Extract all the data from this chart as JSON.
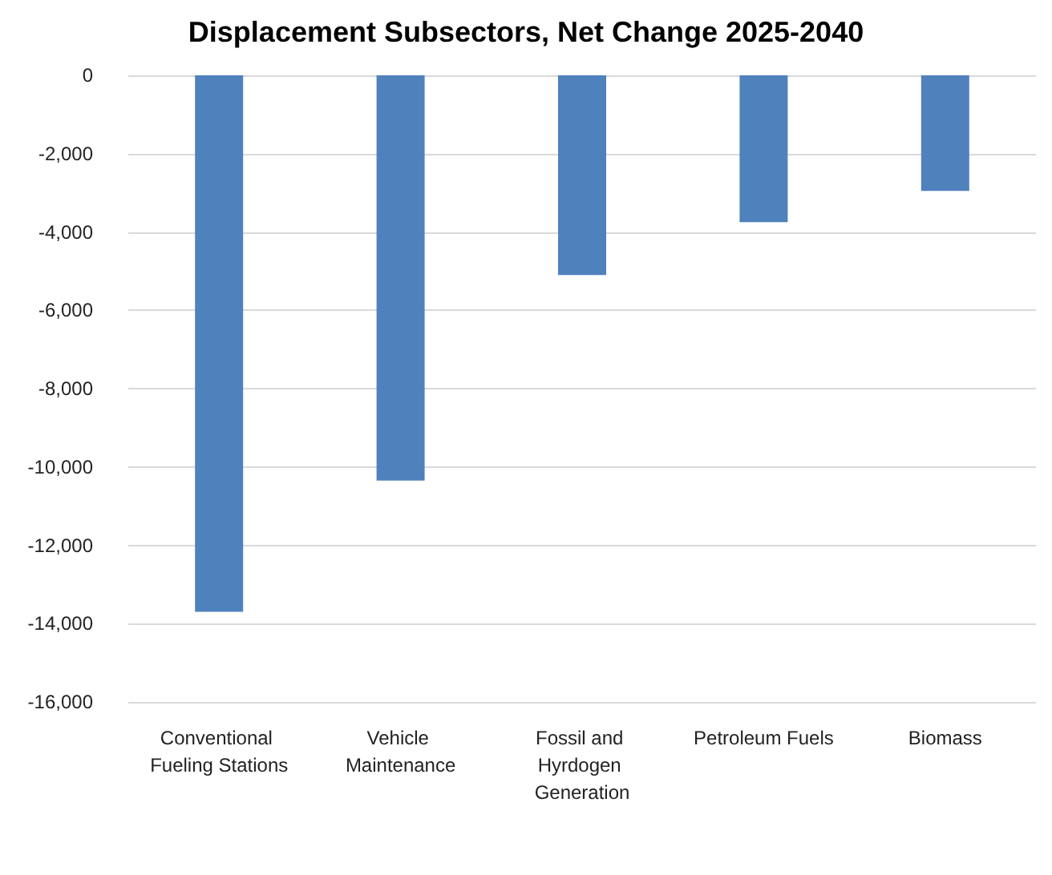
{
  "chart_data": {
    "type": "bar",
    "title": "Displacement Subsectors, Net Change 2025-2040",
    "categories": [
      "Conventional Fueling Stations",
      "Vehicle Maintenance",
      "Fossil and Hyrdogen Generation",
      "Petroleum Fuels",
      "Biomass"
    ],
    "values": [
      -13700,
      -10350,
      -5100,
      -3750,
      -2950
    ],
    "color": "#4f81bd",
    "ylim": [
      -16000,
      0
    ],
    "yticks": [
      {
        "value": -16000,
        "label": "-16,000"
      },
      {
        "value": -14000,
        "label": "-14,000"
      },
      {
        "value": -12000,
        "label": "-12,000"
      },
      {
        "value": -10000,
        "label": "-10,000"
      },
      {
        "value": -8000,
        "label": "-8,000"
      },
      {
        "value": -6000,
        "label": "-6,000"
      },
      {
        "value": -4000,
        "label": "-4,000"
      },
      {
        "value": -2000,
        "label": "-2,000"
      },
      {
        "value": 0,
        "label": "0"
      }
    ],
    "grid": "y"
  }
}
